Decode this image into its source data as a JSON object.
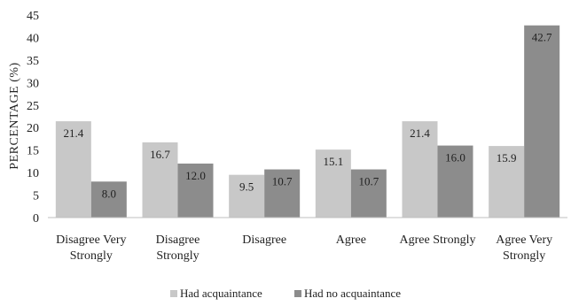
{
  "chart_data": {
    "type": "bar",
    "title": "",
    "xlabel": "",
    "ylabel": "PERCENTAGE (%)",
    "ylim": [
      0,
      45
    ],
    "yticks": [
      0,
      5,
      10,
      15,
      20,
      25,
      30,
      35,
      40,
      45
    ],
    "grid": false,
    "legend_position": "bottom",
    "categories": [
      [
        "Disagree Very",
        "Strongly"
      ],
      [
        "Disagree",
        "Strongly"
      ],
      [
        "Disagree"
      ],
      [
        "Agree"
      ],
      [
        "Agree Strongly"
      ],
      [
        "Agree Very",
        "Strongly"
      ]
    ],
    "series": [
      {
        "name": "Had acquaintance",
        "color": "#c8c8c8",
        "values": [
          21.4,
          16.7,
          9.5,
          15.1,
          21.4,
          15.9
        ],
        "labels": [
          "21.4",
          "16.7",
          "9.5",
          "15.1",
          "21.4",
          "15.9"
        ]
      },
      {
        "name": "Had no acquaintance",
        "color": "#8c8c8c",
        "values": [
          8.0,
          12.0,
          10.7,
          10.7,
          16.0,
          42.7
        ],
        "labels": [
          "8.0",
          "12.0",
          "10.7",
          "10.7",
          "16.0",
          "42.7"
        ]
      }
    ]
  }
}
